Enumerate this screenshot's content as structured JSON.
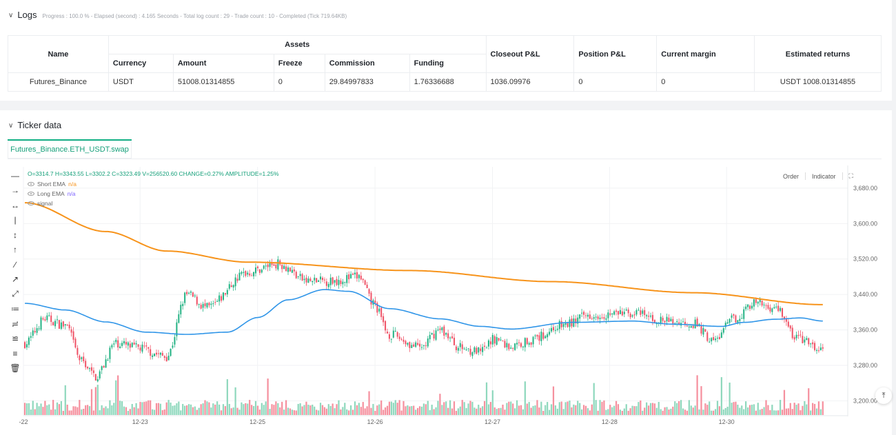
{
  "logs": {
    "title": "Logs",
    "progress": "Progress : 100.0 % - Elapsed (second) : 4.165  Seconds - Total log count : 29 - Trade count : 10 - Completed (Tick 719.64KB)",
    "table": {
      "headers": {
        "name": "Name",
        "assets": "Assets",
        "currency": "Currency",
        "amount": "Amount",
        "freeze": "Freeze",
        "commission": "Commission",
        "funding": "Funding",
        "closeout_pnl": "Closeout P&L",
        "position_pnl": "Position P&L",
        "current_margin": "Current margin",
        "estimated_returns": "Estimated returns"
      },
      "row": {
        "name": "Futures_Binance",
        "currency": "USDT",
        "amount": "51008.01314855",
        "freeze": "0",
        "commission": "29.84997833",
        "funding": "1.76336688",
        "closeout_pnl": "1036.09976",
        "position_pnl": "0",
        "current_margin": "0",
        "estimated_returns": "USDT 1008.01314855"
      }
    }
  },
  "ticker": {
    "title": "Ticker data",
    "tab": "Futures_Binance.ETH_USDT.swap",
    "ohlc": "O=3314.7 H=3343.55 L=3302.2 C=3323.49 V=256520.60 CHANGE=0.27% AMPLITUDE=1.25%",
    "legend": [
      {
        "label": "Short EMA",
        "value": "n/a",
        "color": "#f7931a"
      },
      {
        "label": "Long EMA",
        "value": "n/a",
        "color": "#7b61ff"
      },
      {
        "label": "signal",
        "value": ""
      }
    ],
    "buttons": {
      "order": "Order",
      "indicator": "Indicator"
    }
  },
  "chart_data": {
    "type": "candlestick",
    "y_ticks": [
      "3,680.00",
      "3,600.00",
      "3,520.00",
      "3,440.00",
      "3,360.00",
      "3,280.00",
      "3,200.00"
    ],
    "x_ticks": [
      "-22",
      "12-23",
      "12-25",
      "12-26",
      "12-27",
      "12-28",
      "12-30"
    ],
    "ylim": [
      3168,
      3728
    ],
    "up_color": "#26b385",
    "down_color": "#ef5468",
    "short_ema_color": "#f7931a",
    "long_ema_color": "#2f95e8",
    "orange_ema_knots": [
      [
        0,
        3647
      ],
      [
        40,
        3582
      ],
      [
        70,
        3538
      ],
      [
        110,
        3513
      ],
      [
        190,
        3494
      ],
      [
        260,
        3469
      ],
      [
        330,
        3444
      ],
      [
        394,
        3417
      ]
    ],
    "blue_ema_knots": [
      [
        0,
        3420
      ],
      [
        20,
        3405
      ],
      [
        40,
        3378
      ],
      [
        60,
        3355
      ],
      [
        80,
        3350
      ],
      [
        100,
        3355
      ],
      [
        115,
        3388
      ],
      [
        130,
        3428
      ],
      [
        148,
        3451
      ],
      [
        160,
        3447
      ],
      [
        180,
        3408
      ],
      [
        205,
        3385
      ],
      [
        225,
        3368
      ],
      [
        240,
        3362
      ],
      [
        270,
        3377
      ],
      [
        300,
        3380
      ],
      [
        320,
        3373
      ],
      [
        344,
        3368
      ],
      [
        355,
        3377
      ],
      [
        370,
        3384
      ],
      [
        383,
        3387
      ],
      [
        394,
        3380
      ]
    ],
    "close_knots": [
      [
        0,
        3330
      ],
      [
        10,
        3385
      ],
      [
        20,
        3370
      ],
      [
        28,
        3290
      ],
      [
        35,
        3255
      ],
      [
        45,
        3330
      ],
      [
        55,
        3320
      ],
      [
        70,
        3300
      ],
      [
        80,
        3440
      ],
      [
        90,
        3410
      ],
      [
        110,
        3490
      ],
      [
        125,
        3510
      ],
      [
        140,
        3470
      ],
      [
        150,
        3470
      ],
      [
        165,
        3480
      ],
      [
        172,
        3420
      ],
      [
        180,
        3350
      ],
      [
        195,
        3320
      ],
      [
        205,
        3360
      ],
      [
        215,
        3320
      ],
      [
        225,
        3310
      ],
      [
        232,
        3340
      ],
      [
        240,
        3322
      ],
      [
        250,
        3337
      ],
      [
        265,
        3370
      ],
      [
        280,
        3395
      ],
      [
        300,
        3398
      ],
      [
        315,
        3380
      ],
      [
        330,
        3375
      ],
      [
        340,
        3335
      ],
      [
        350,
        3385
      ],
      [
        360,
        3420
      ],
      [
        372,
        3408
      ],
      [
        380,
        3345
      ],
      [
        394,
        3312
      ]
    ]
  }
}
